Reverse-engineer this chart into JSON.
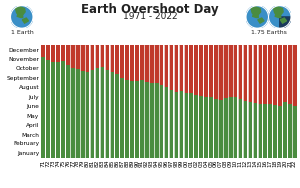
{
  "title_line1": "Earth Overshoot Day",
  "title_line2": "1971 - 2022",
  "label_left": "1 Earth",
  "label_right": "1.75 Earths",
  "ylabel_months": [
    "January",
    "February",
    "March",
    "April",
    "May",
    "June",
    "July",
    "August",
    "September",
    "October",
    "November",
    "December"
  ],
  "years": [
    1971,
    1972,
    1973,
    1974,
    1975,
    1976,
    1977,
    1978,
    1979,
    1980,
    1981,
    1982,
    1983,
    1984,
    1985,
    1986,
    1987,
    1988,
    1989,
    1990,
    1991,
    1992,
    1993,
    1994,
    1995,
    1996,
    1997,
    1998,
    1999,
    2000,
    2001,
    2002,
    2003,
    2004,
    2005,
    2006,
    2007,
    2008,
    2009,
    2010,
    2011,
    2012,
    2013,
    2014,
    2015,
    2016,
    2017,
    2018,
    2019,
    2020,
    2021,
    2022
  ],
  "overshoot_day": [
    328,
    316,
    309,
    309,
    312,
    302,
    292,
    288,
    280,
    278,
    286,
    291,
    295,
    284,
    277,
    270,
    259,
    252,
    248,
    249,
    252,
    246,
    241,
    241,
    236,
    228,
    219,
    214,
    216,
    211,
    211,
    204,
    199,
    198,
    196,
    191,
    188,
    194,
    198,
    196,
    191,
    185,
    181,
    177,
    174,
    176,
    173,
    170,
    168,
    181,
    175,
    168
  ],
  "green_color": "#4a8c3f",
  "red_color": "#c0392b",
  "bg_color": "#ffffff",
  "title_fontsize": 8.5,
  "subtitle_fontsize": 6.5,
  "tick_fontsize": 4.2,
  "label_fontsize": 4.5,
  "bar_width": 0.85,
  "total_days": 365,
  "month_days": [
    15,
    46,
    74,
    105,
    135,
    166,
    196,
    227,
    258,
    288,
    319,
    349
  ]
}
